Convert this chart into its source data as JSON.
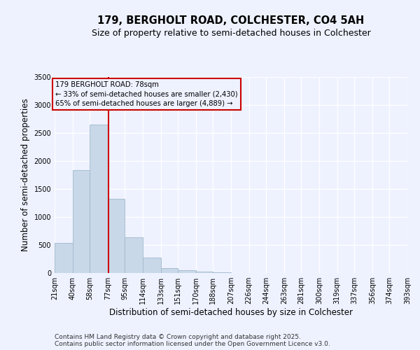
{
  "title": "179, BERGHOLT ROAD, COLCHESTER, CO4 5AH",
  "subtitle": "Size of property relative to semi-detached houses in Colchester",
  "xlabel": "Distribution of semi-detached houses by size in Colchester",
  "ylabel": "Number of semi-detached properties",
  "footnote1": "Contains HM Land Registry data © Crown copyright and database right 2025.",
  "footnote2": "Contains public sector information licensed under the Open Government Licence v3.0.",
  "annotation_title": "179 BERGHOLT ROAD: 78sqm",
  "annotation_line1": "← 33% of semi-detached houses are smaller (2,430)",
  "annotation_line2": "65% of semi-detached houses are larger (4,889) →",
  "property_size": 78,
  "bin_edges": [
    21,
    40,
    58,
    77,
    95,
    114,
    133,
    151,
    170,
    188,
    207,
    226,
    244,
    263,
    281,
    300,
    319,
    337,
    356,
    374,
    393
  ],
  "bin_labels": [
    "21sqm",
    "40sqm",
    "58sqm",
    "77sqm",
    "95sqm",
    "114sqm",
    "133sqm",
    "151sqm",
    "170sqm",
    "188sqm",
    "207sqm",
    "226sqm",
    "244sqm",
    "263sqm",
    "281sqm",
    "300sqm",
    "319sqm",
    "337sqm",
    "356sqm",
    "374sqm",
    "393sqm"
  ],
  "counts": [
    540,
    1840,
    2650,
    1330,
    640,
    270,
    90,
    50,
    25,
    12,
    6,
    4,
    3,
    2,
    2,
    1,
    1,
    1,
    0,
    0
  ],
  "bar_color": "#c8d8e8",
  "bar_edgecolor": "#a0b8cc",
  "property_line_color": "#cc0000",
  "annotation_box_color": "#cc0000",
  "background_color": "#eef2ff",
  "ylim": [
    0,
    3500
  ],
  "title_fontsize": 10.5,
  "subtitle_fontsize": 9,
  "axis_label_fontsize": 8.5,
  "tick_fontsize": 7,
  "footnote_fontsize": 6.5
}
